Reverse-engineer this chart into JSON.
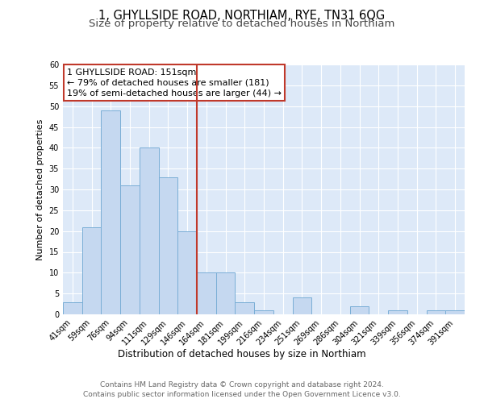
{
  "title": "1, GHYLLSIDE ROAD, NORTHIAM, RYE, TN31 6QG",
  "subtitle": "Size of property relative to detached houses in Northiam",
  "xlabel": "Distribution of detached houses by size in Northiam",
  "ylabel": "Number of detached properties",
  "bar_labels": [
    "41sqm",
    "59sqm",
    "76sqm",
    "94sqm",
    "111sqm",
    "129sqm",
    "146sqm",
    "164sqm",
    "181sqm",
    "199sqm",
    "216sqm",
    "234sqm",
    "251sqm",
    "269sqm",
    "286sqm",
    "304sqm",
    "321sqm",
    "339sqm",
    "356sqm",
    "374sqm",
    "391sqm"
  ],
  "bar_values": [
    3,
    21,
    49,
    31,
    40,
    33,
    20,
    10,
    10,
    3,
    1,
    0,
    4,
    0,
    0,
    2,
    0,
    1,
    0,
    1,
    1
  ],
  "bar_color": "#c5d8f0",
  "bar_edge_color": "#7aaed6",
  "vline_color": "#c0392b",
  "ylim": [
    0,
    60
  ],
  "yticks": [
    0,
    5,
    10,
    15,
    20,
    25,
    30,
    35,
    40,
    45,
    50,
    55,
    60
  ],
  "annotation_line1": "1 GHYLLSIDE ROAD: 151sqm",
  "annotation_line2": "← 79% of detached houses are smaller (181)",
  "annotation_line3": "19% of semi-detached houses are larger (44) →",
  "annotation_box_color": "#c0392b",
  "bg_color": "#dde9f8",
  "footer_line1": "Contains HM Land Registry data © Crown copyright and database right 2024.",
  "footer_line2": "Contains public sector information licensed under the Open Government Licence v3.0.",
  "title_fontsize": 10.5,
  "subtitle_fontsize": 9.5,
  "xlabel_fontsize": 8.5,
  "ylabel_fontsize": 8,
  "tick_fontsize": 7,
  "annotation_fontsize": 8,
  "footer_fontsize": 6.5
}
